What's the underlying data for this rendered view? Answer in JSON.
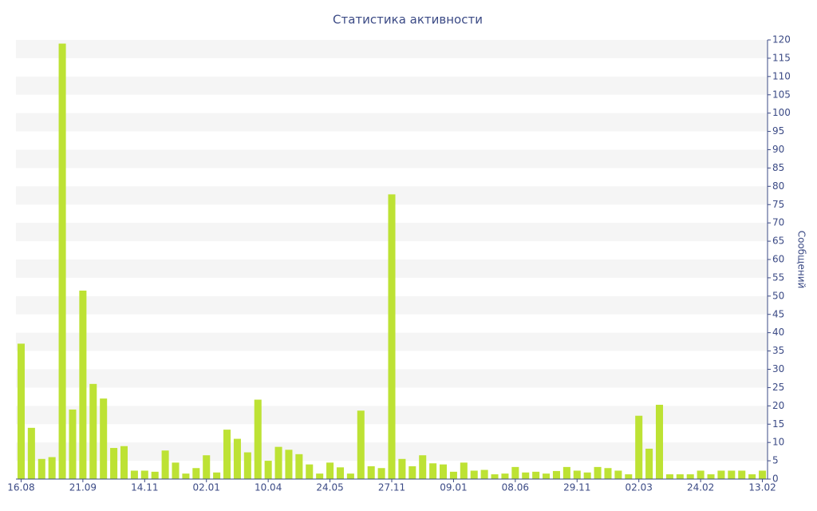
{
  "chart_data": {
    "type": "bar",
    "title": "Статистика активности",
    "y_label": "Сообщений",
    "categories": [
      "16.08",
      null,
      null,
      null,
      null,
      null,
      "21.09",
      null,
      null,
      null,
      null,
      null,
      "14.11",
      null,
      null,
      null,
      null,
      null,
      "02.01",
      null,
      null,
      null,
      null,
      null,
      "10.04",
      null,
      null,
      null,
      null,
      null,
      "24.05",
      null,
      null,
      null,
      null,
      null,
      "27.11",
      null,
      null,
      null,
      null,
      null,
      "09.01",
      null,
      null,
      null,
      null,
      null,
      "08.06",
      null,
      null,
      null,
      null,
      null,
      "29.11",
      null,
      null,
      null,
      null,
      null,
      "02.03",
      null,
      null,
      null,
      null,
      null,
      "24.02",
      null,
      null,
      null,
      null,
      null,
      "13.02"
    ],
    "values": [
      37,
      14,
      5.5,
      6,
      119,
      19,
      51.5,
      26,
      22,
      8.5,
      9,
      2.3,
      2.3,
      2,
      7.8,
      4.5,
      1.5,
      3,
      6.5,
      1.8,
      13.5,
      11,
      7.3,
      21.7,
      5,
      8.8,
      8,
      6.8,
      4,
      1.5,
      4.5,
      3.2,
      1.5,
      18.7,
      3.5,
      3,
      77.8,
      5.5,
      3.5,
      6.5,
      4.3,
      4,
      2,
      4.5,
      2.3,
      2.5,
      1.3,
      1.5,
      3.3,
      1.8,
      2,
      1.5,
      2.2,
      3.3,
      2.3,
      1.8,
      3.3,
      3,
      2.3,
      1.3,
      17.3,
      8.3,
      20.3,
      1.3,
      1.3,
      1.3,
      2.3,
      1.3,
      2.3,
      2.3,
      2.3,
      1.3,
      2.3
    ],
    "color": "#bde234",
    "ylim": [
      0,
      120
    ],
    "yticks": [
      0,
      5,
      10,
      15,
      20,
      25,
      30,
      35,
      40,
      45,
      50,
      55,
      60,
      65,
      70,
      75,
      80,
      85,
      90,
      95,
      100,
      105,
      110,
      115,
      120
    ],
    "grid": true,
    "y_axis_side": "right"
  }
}
